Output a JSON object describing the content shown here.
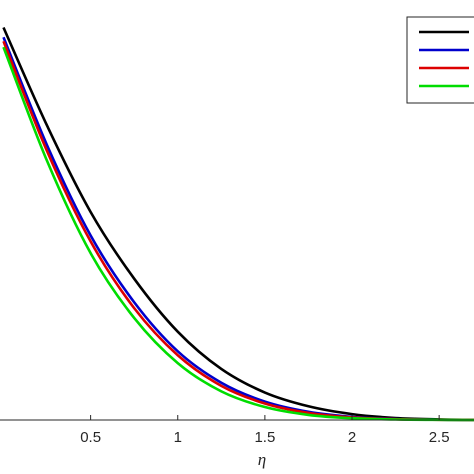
{
  "chart_data": {
    "type": "line",
    "xlabel": "η",
    "ylabel": "",
    "title": "",
    "xlim": [
      -0.02,
      2.7
    ],
    "ylim": [
      0,
      1.07
    ],
    "x_ticks": [
      "0.5",
      "1",
      "1.5",
      "2",
      "2.5"
    ],
    "x_tick_values": [
      0.5,
      1,
      1.5,
      2,
      2.5
    ],
    "grid": false,
    "legend_position": "top-right",
    "legend_labels_visible": false,
    "series": [
      {
        "color": "#000000",
        "x": [
          0,
          0.25,
          0.5,
          0.75,
          1,
          1.25,
          1.5,
          1.75,
          2,
          2.25,
          2.5,
          2.7
        ],
        "y": [
          1.0,
          0.75,
          0.53,
          0.36,
          0.225,
          0.13,
          0.07,
          0.035,
          0.015,
          0.005,
          0.0015,
          0.0003
        ]
      },
      {
        "color": "#0000cc",
        "x": [
          0,
          0.25,
          0.5,
          0.75,
          1,
          1.25,
          1.5,
          1.75,
          2,
          2.25,
          2.5,
          2.7
        ],
        "y": [
          0.975,
          0.7,
          0.47,
          0.3,
          0.175,
          0.095,
          0.047,
          0.021,
          0.008,
          0.0025,
          0.0006,
          0.0001
        ]
      },
      {
        "color": "#dd0000",
        "x": [
          0,
          0.25,
          0.5,
          0.75,
          1,
          1.25,
          1.5,
          1.75,
          2,
          2.25,
          2.5,
          2.7
        ],
        "y": [
          0.965,
          0.685,
          0.455,
          0.285,
          0.165,
          0.087,
          0.042,
          0.018,
          0.0065,
          0.002,
          0.0005,
          0.0001
        ]
      },
      {
        "color": "#00dd00",
        "x": [
          0,
          0.25,
          0.5,
          0.75,
          1,
          1.25,
          1.5,
          1.75,
          2,
          2.25,
          2.5,
          2.7
        ],
        "y": [
          0.95,
          0.66,
          0.425,
          0.26,
          0.145,
          0.073,
          0.033,
          0.013,
          0.0045,
          0.0013,
          0.0003,
          0.0
        ]
      }
    ]
  }
}
